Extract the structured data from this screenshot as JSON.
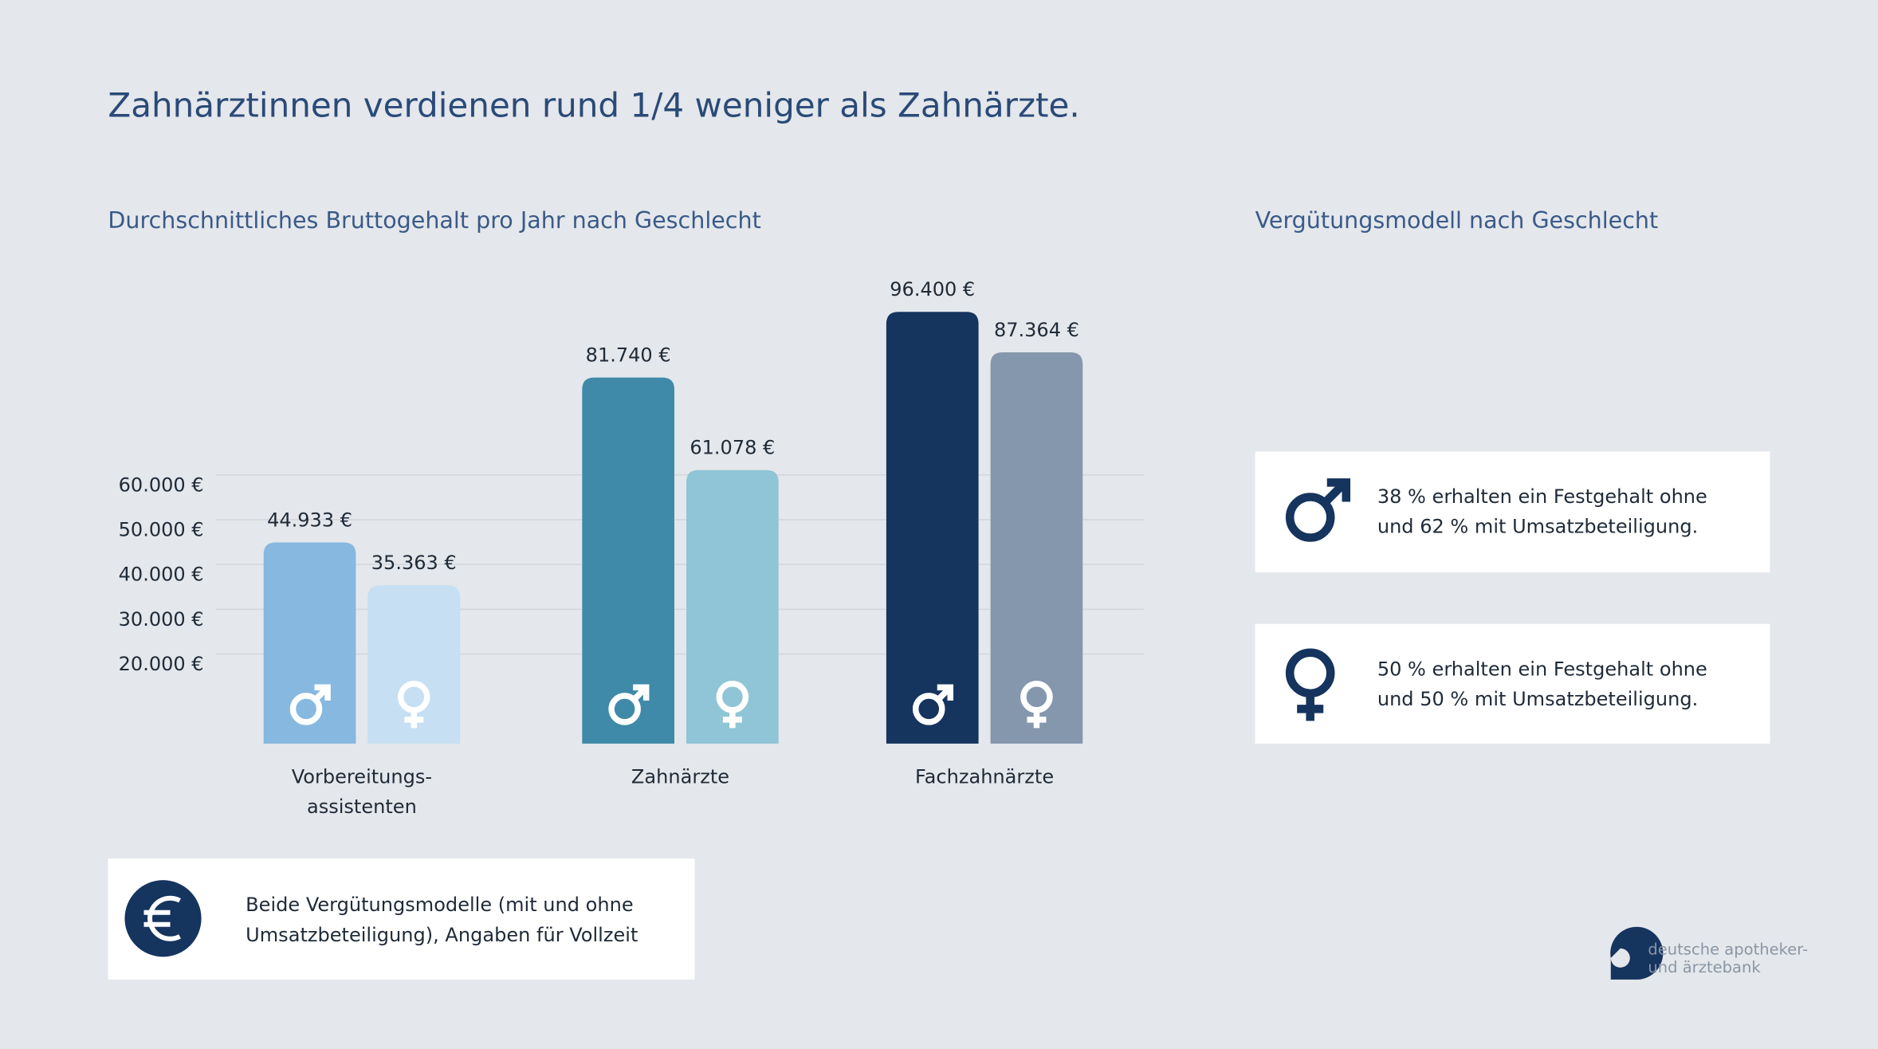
{
  "chart_data": {
    "type": "bar",
    "title": "Zahnärztinnen verdienen rund 1/4 weniger als Zahnärzte.",
    "subtitle": "Durchschnittliches Bruttogehalt pro Jahr nach Geschlecht",
    "categories": [
      "Vorbereitungs-\nassistenten",
      "Zahnärzte",
      "Fachzahnärzte"
    ],
    "series": [
      {
        "colors": [
          "#86b8e0",
          "#3e8aa8",
          "#15345e"
        ],
        "values": [
          44933,
          81740,
          96400
        ],
        "value_labels": [
          "44.933 €",
          "81.740 €",
          "96.400 €"
        ]
      },
      {
        "colors": [
          "#c6dff2",
          "#8fc5d6",
          "#8597ad"
        ],
        "values": [
          35363,
          61078,
          87364
        ],
        "value_labels": [
          "35.363 €",
          "61.078 €",
          "87.364 €"
        ]
      }
    ],
    "ylim": [
      0,
      100000
    ],
    "yticks": [
      {
        "value": 20000,
        "label": "20.000 €"
      },
      {
        "value": 30000,
        "label": "30.000 €"
      },
      {
        "value": 40000,
        "label": "40.000 €"
      },
      {
        "value": 50000,
        "label": "50.000 €"
      },
      {
        "value": 60000,
        "label": "60.000 €"
      }
    ],
    "grid": true
  },
  "side_panel": {
    "title": "Vergütungsmodell nach Geschlecht",
    "items": [
      "38 % erhalten ein Festgehalt ohne und 62 % mit Umsatzbeteiligung.",
      "50 % erhalten ein Festgehalt ohne und 50 % mit Umsatzbeteiligung."
    ]
  },
  "note": "Beide Vergütungsmodelle (mit und ohne Umsatzbeteiligung), Angaben für Vollzeit",
  "logo": "deutsche apotheker-\nund ärztebank"
}
